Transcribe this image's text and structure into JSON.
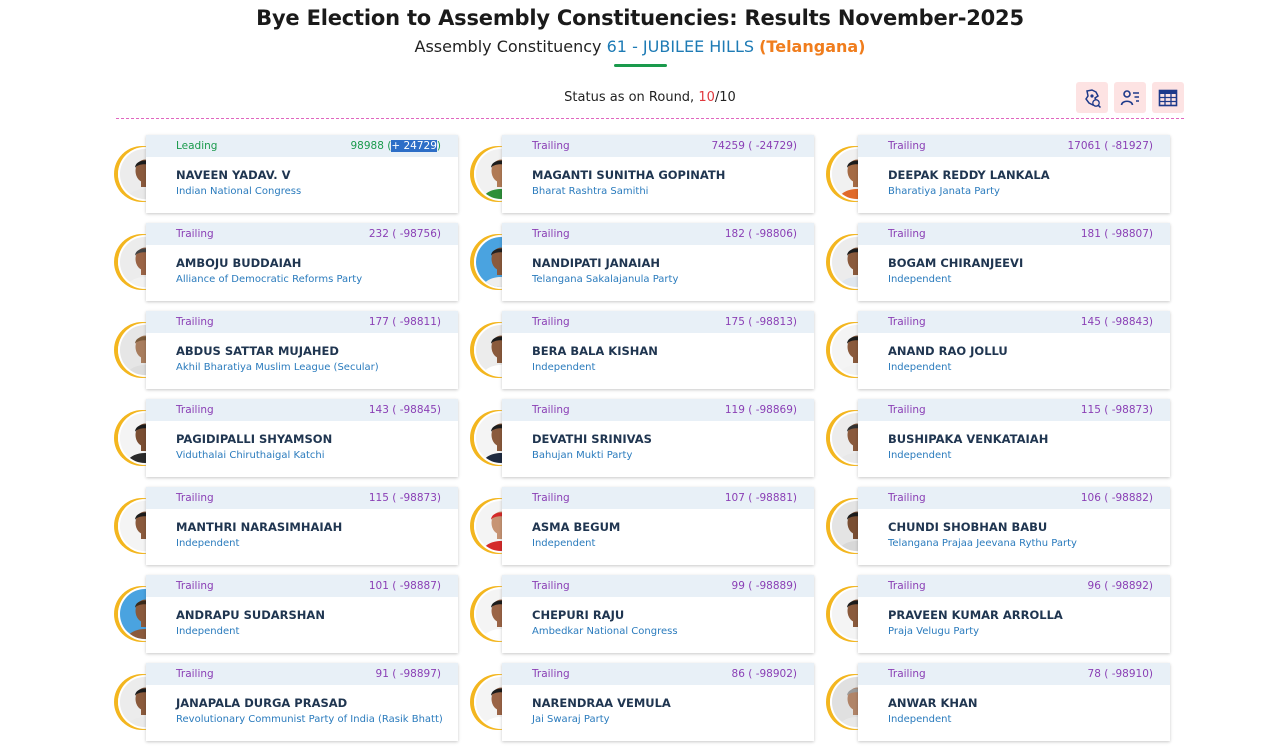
{
  "header": {
    "title": "Bye Election to Assembly Constituencies: Results November-2025",
    "ac_label": "Assembly Constituency",
    "ac_number_name": "61 - JUBILEE HILLS",
    "state": "(Telangana)"
  },
  "status": {
    "prefix": "Status as on Round,",
    "current_round": "10",
    "separator": "/",
    "total_rounds": "10"
  },
  "tools": [
    {
      "name": "constituency-map-icon"
    },
    {
      "name": "candidate-list-icon"
    },
    {
      "name": "table-view-icon"
    }
  ],
  "colors": {
    "leading": "#1a9a4c",
    "trailing": "#8a3fb5",
    "party": "#2a7bbd",
    "ring": "#f3b61f",
    "accent_orange": "#f07d1d"
  },
  "candidates": [
    {
      "status": "Leading",
      "votes": "98988",
      "margin": "+ 24729",
      "name": "NAVEEN YADAV. V",
      "party": "Indian National Congress",
      "skin": "#8a5a3c",
      "hair": "#1c1c1c",
      "shirt": "#e9e9e9",
      "bg": "#ececec"
    },
    {
      "status": "Trailing",
      "votes": "74259",
      "margin": " -24729",
      "name": "MAGANTI SUNITHA GOPINATH",
      "party": "Bharat Rashtra Samithi",
      "skin": "#b07a55",
      "hair": "#1c1c1c",
      "shirt": "#2f8f3a",
      "bg": "#f1f1f1"
    },
    {
      "status": "Trailing",
      "votes": "17061",
      "margin": " -81927",
      "name": "DEEPAK REDDY LANKALA",
      "party": "Bharatiya Janata Party",
      "skin": "#a56b45",
      "hair": "#1c1c1c",
      "shirt": "#e06a2a",
      "bg": "#f1f1f1"
    },
    {
      "status": "Trailing",
      "votes": "232",
      "margin": " -98756",
      "name": "AMBOJU BUDDAIAH",
      "party": "Alliance of Democratic Reforms Party",
      "skin": "#9a6446",
      "hair": "#444444",
      "shirt": "#f2f2f2",
      "bg": "#ececec"
    },
    {
      "status": "Trailing",
      "votes": "182",
      "margin": " -98806",
      "name": "NANDIPATI JANAIAH",
      "party": "Telangana Sakalajanula Party",
      "skin": "#8a5a3c",
      "hair": "#222222",
      "shirt": "#eeeeee",
      "bg": "#4aa3e0"
    },
    {
      "status": "Trailing",
      "votes": "181",
      "margin": " -98807",
      "name": "BOGAM CHIRANJEEVI",
      "party": "Independent",
      "skin": "#8a5a3c",
      "hair": "#1c1c1c",
      "shirt": "#dfe6ee",
      "bg": "#ececec"
    },
    {
      "status": "Trailing",
      "votes": "177",
      "margin": " -98811",
      "name": "ABDUS SATTAR MUJAHED",
      "party": "Akhil Bharatiya Muslim League (Secular)",
      "skin": "#a87d5e",
      "hair": "#7a5a3a",
      "shirt": "#dddddd",
      "bg": "#e6e6e6"
    },
    {
      "status": "Trailing",
      "votes": "175",
      "margin": " -98813",
      "name": "BERA BALA KISHAN",
      "party": "Independent",
      "skin": "#8a5a3c",
      "hair": "#1c1c1c",
      "shirt": "#ffffff",
      "bg": "#ececec"
    },
    {
      "status": "Trailing",
      "votes": "145",
      "margin": " -98843",
      "name": "ANAND RAO JOLLU",
      "party": "Independent",
      "skin": "#8a5a3c",
      "hair": "#1c1c1c",
      "shirt": "#f2f2f2",
      "bg": "#f4f4f4"
    },
    {
      "status": "Trailing",
      "votes": "143",
      "margin": " -98845",
      "name": "PAGIDIPALLI SHYAMSON",
      "party": "Viduthalai Chiruthaigal Katchi",
      "skin": "#7a4e32",
      "hair": "#1c1c1c",
      "shirt": "#2a2a2a",
      "bg": "#f4f4f4"
    },
    {
      "status": "Trailing",
      "votes": "119",
      "margin": " -98869",
      "name": "DEVATHI SRINIVAS",
      "party": "Bahujan Mukti Party",
      "skin": "#8a5a3c",
      "hair": "#1c1c1c",
      "shirt": "#1e2a40",
      "bg": "#f4f4f4"
    },
    {
      "status": "Trailing",
      "votes": "115",
      "margin": " -98873",
      "name": "BUSHIPAKA VENKATAIAH",
      "party": "Independent",
      "skin": "#8a5a3c",
      "hair": "#333333",
      "shirt": "#e8e8e8",
      "bg": "#ececec"
    },
    {
      "status": "Trailing",
      "votes": "115",
      "margin": " -98873",
      "name": "MANTHRI NARASIMHAIAH",
      "party": "Independent",
      "skin": "#8a5a3c",
      "hair": "#1c1c1c",
      "shirt": "#f4f4f4",
      "bg": "#f4f4f4"
    },
    {
      "status": "Trailing",
      "votes": "107",
      "margin": " -98881",
      "name": "ASMA BEGUM",
      "party": "Independent",
      "skin": "#c79474",
      "hair": "#d42a2a",
      "shirt": "#d42a2a",
      "bg": "#f4f4f4"
    },
    {
      "status": "Trailing",
      "votes": "106",
      "margin": " -98882",
      "name": "CHUNDI SHOBHAN BABU",
      "party": "Telangana Prajaa Jeevana Rythu Party",
      "skin": "#7a4e32",
      "hair": "#1c1c1c",
      "shirt": "#d8d8d8",
      "bg": "#e4e4e4"
    },
    {
      "status": "Trailing",
      "votes": "101",
      "margin": " -98887",
      "name": "ANDRAPU SUDARSHAN",
      "party": "Independent",
      "skin": "#8a5a3c",
      "hair": "#3a2a1a",
      "shirt": "#8a5a3c",
      "bg": "#4aa3e0"
    },
    {
      "status": "Trailing",
      "votes": "99",
      "margin": " -98889",
      "name": "CHEPURI RAJU",
      "party": "Ambedkar National Congress",
      "skin": "#9a6446",
      "hair": "#1c1c1c",
      "shirt": "#ffffff",
      "bg": "#f4f4f4"
    },
    {
      "status": "Trailing",
      "votes": "96",
      "margin": " -98892",
      "name": "PRAVEEN KUMAR ARROLLA",
      "party": "Praja Velugu Party",
      "skin": "#8a5a3c",
      "hair": "#1c1c1c",
      "shirt": "#f4f4f4",
      "bg": "#f4f4f4"
    },
    {
      "status": "Trailing",
      "votes": "91",
      "margin": " -98897",
      "name": "JANAPALA DURGA PRASAD",
      "party": "Revolutionary Communist Party of India (Rasik Bhatt)",
      "skin": "#8a5a3c",
      "hair": "#1c1c1c",
      "shirt": "#eaeaea",
      "bg": "#ececec"
    },
    {
      "status": "Trailing",
      "votes": "86",
      "margin": " -98902",
      "name": "NARENDRAA VEMULA",
      "party": "Jai Swaraj Party",
      "skin": "#9a6446",
      "hair": "#1c1c1c",
      "shirt": "#ffffff",
      "bg": "#f4f4f4"
    },
    {
      "status": "Trailing",
      "votes": "78",
      "margin": " -98910",
      "name": "ANWAR KHAN",
      "party": "Independent",
      "skin": "#b08468",
      "hair": "#9a9a9a",
      "shirt": "#e8e8e8",
      "bg": "#e0e0e0"
    }
  ]
}
